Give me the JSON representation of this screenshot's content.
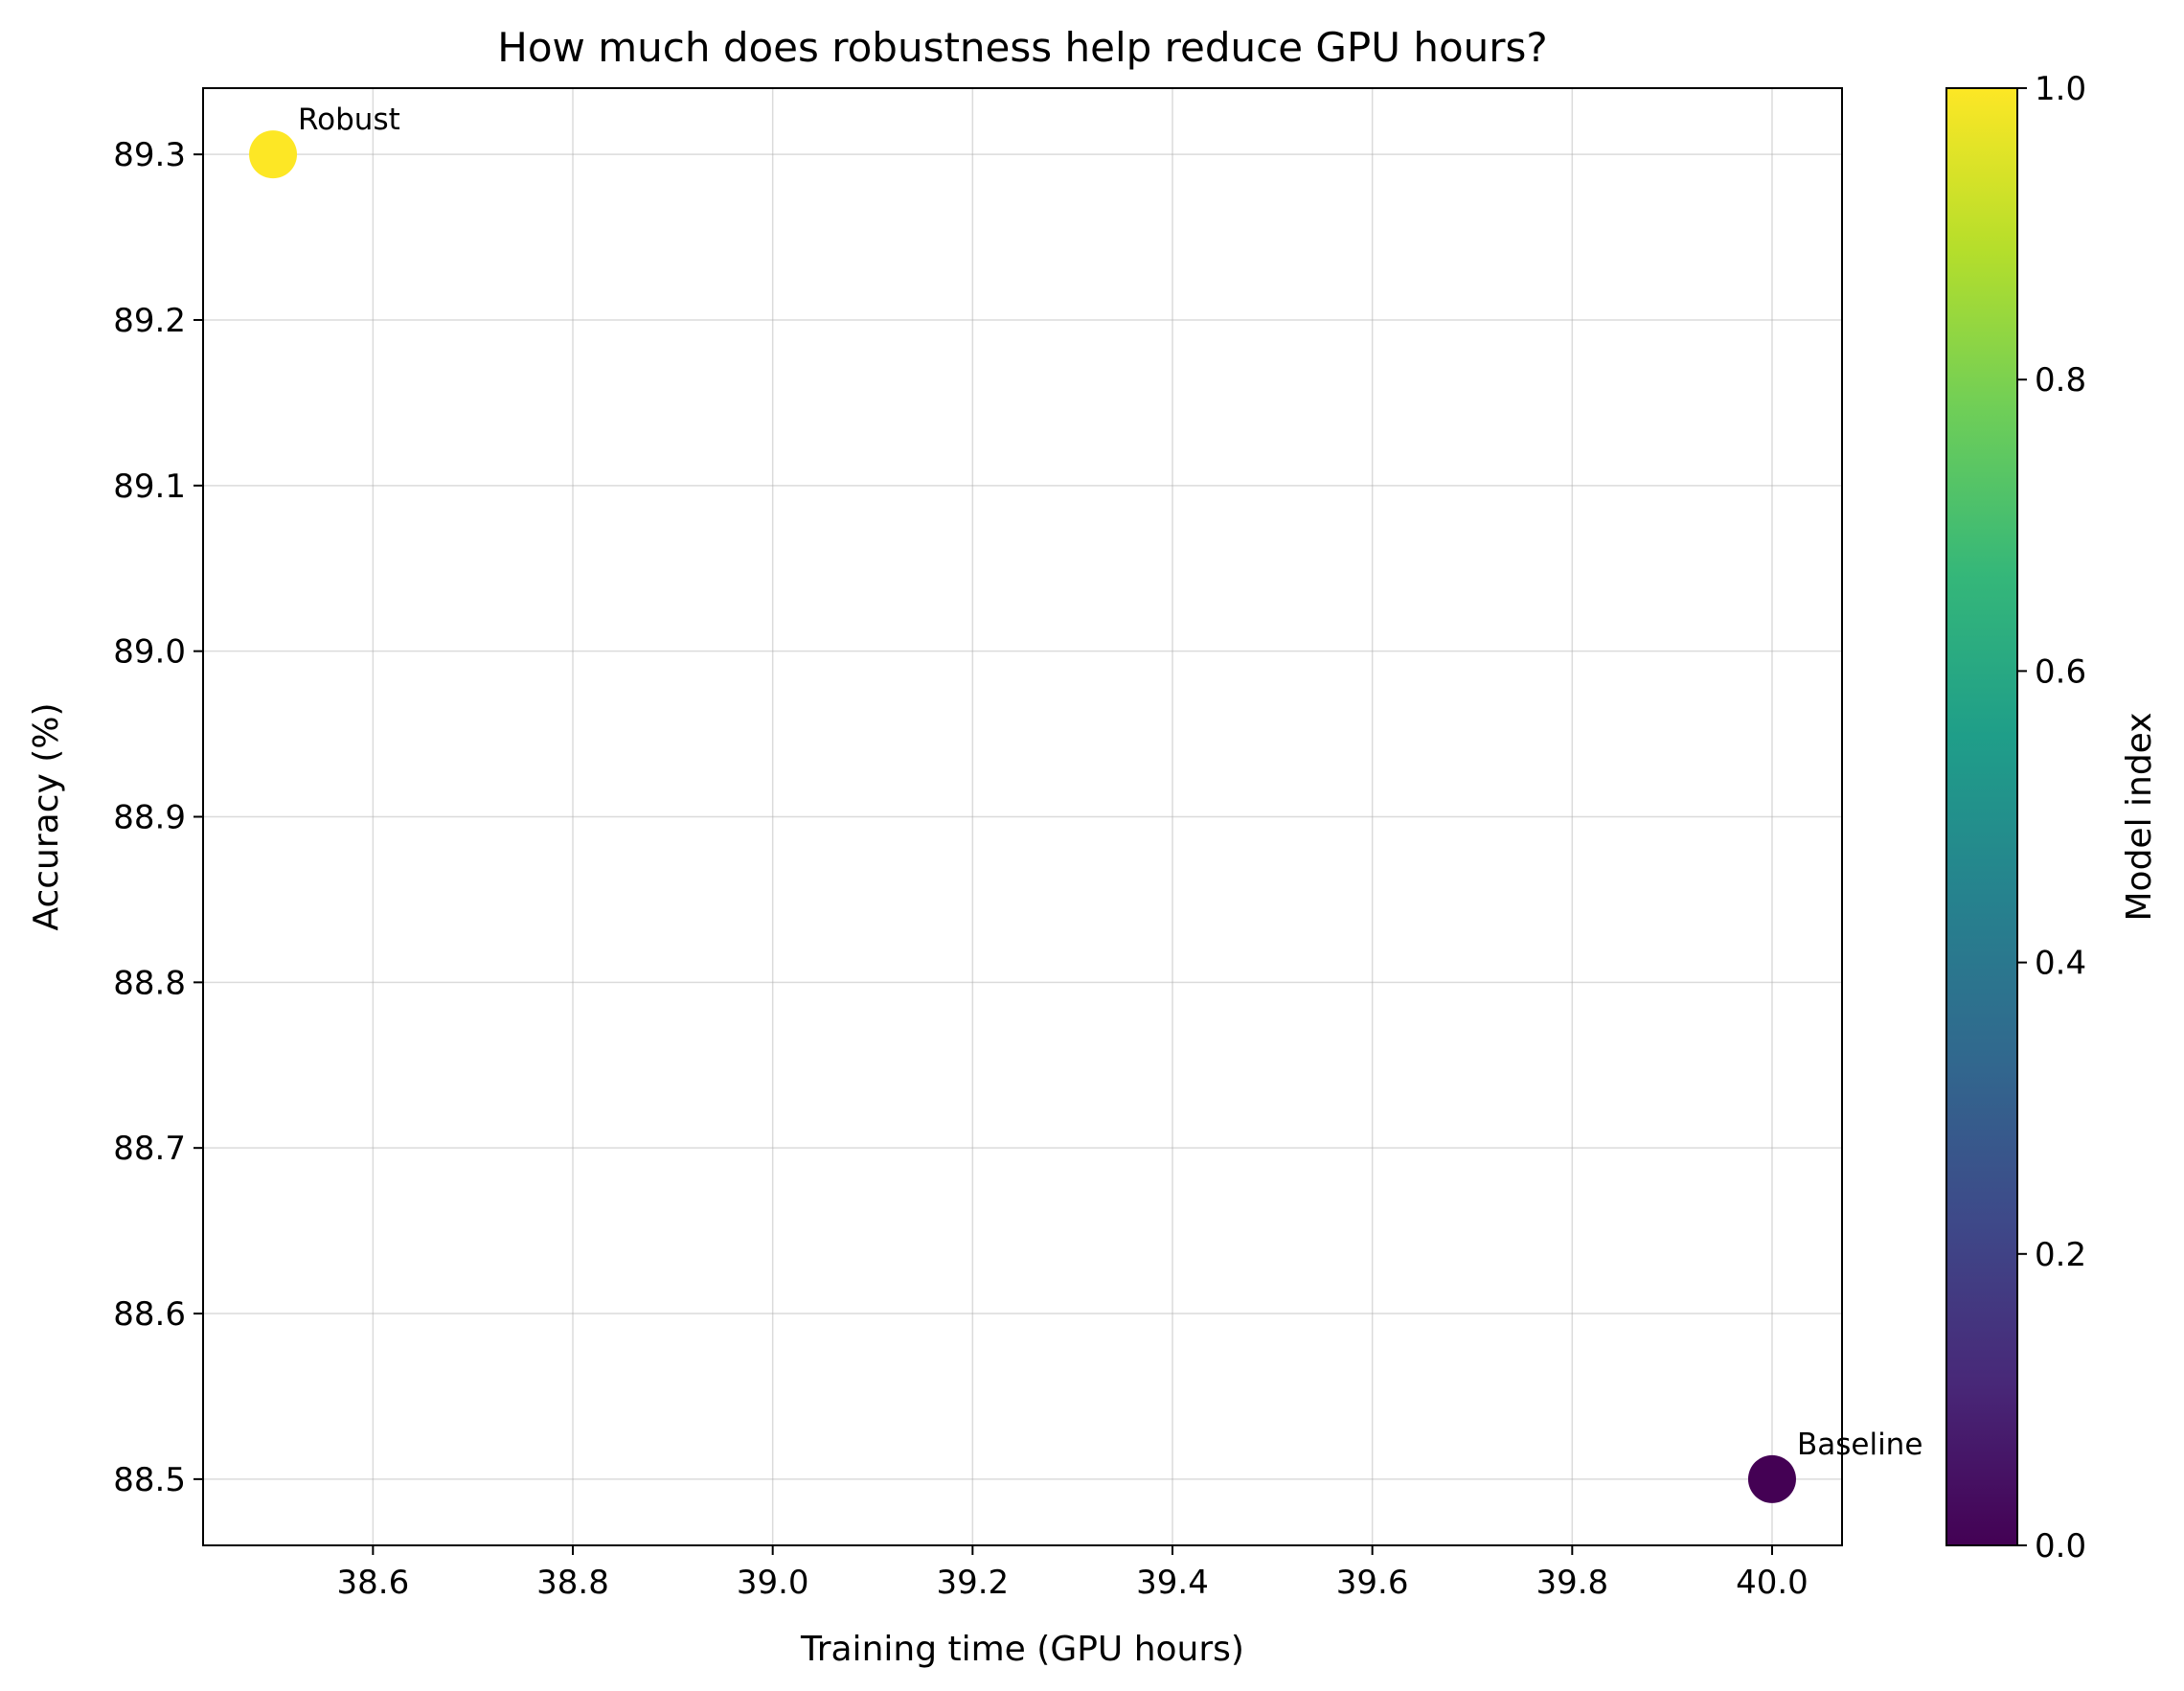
{
  "chart_data": {
    "type": "scatter",
    "title": "How much does robustness help reduce GPU hours?",
    "xlabel": "Training time (GPU hours)",
    "ylabel": "Accuracy (%)",
    "xlim": [
      38.43,
      40.07
    ],
    "ylim": [
      88.46,
      89.34
    ],
    "xticks": [
      38.6,
      38.8,
      39.0,
      39.2,
      39.4,
      39.6,
      39.8,
      40.0
    ],
    "xtick_labels": [
      "38.6",
      "38.8",
      "39.0",
      "39.2",
      "39.4",
      "39.6",
      "39.8",
      "40.0"
    ],
    "yticks": [
      88.5,
      88.6,
      88.7,
      88.8,
      88.9,
      89.0,
      89.1,
      89.2,
      89.3
    ],
    "ytick_labels": [
      "88.5",
      "88.6",
      "88.7",
      "88.8",
      "88.9",
      "89.0",
      "89.1",
      "89.2",
      "89.3"
    ],
    "grid": true,
    "points": [
      {
        "label": "Baseline",
        "x": 40.0,
        "y": 88.5,
        "color_value": 0.0,
        "color": "#440154"
      },
      {
        "label": "Robust",
        "x": 38.5,
        "y": 89.3,
        "color_value": 1.0,
        "color": "#fde725"
      }
    ],
    "colorbar": {
      "label": "Model index",
      "range": [
        0.0,
        1.0
      ],
      "ticks": [
        0.0,
        0.2,
        0.4,
        0.6,
        0.8,
        1.0
      ],
      "tick_labels": [
        "0.0",
        "0.2",
        "0.4",
        "0.6",
        "0.8",
        "1.0"
      ],
      "colormap": "viridis",
      "stops": [
        "#440154",
        "#482878",
        "#3e4989",
        "#31688e",
        "#26828e",
        "#1f9e89",
        "#35b779",
        "#6ece58",
        "#b5de2b",
        "#fde725"
      ]
    }
  }
}
